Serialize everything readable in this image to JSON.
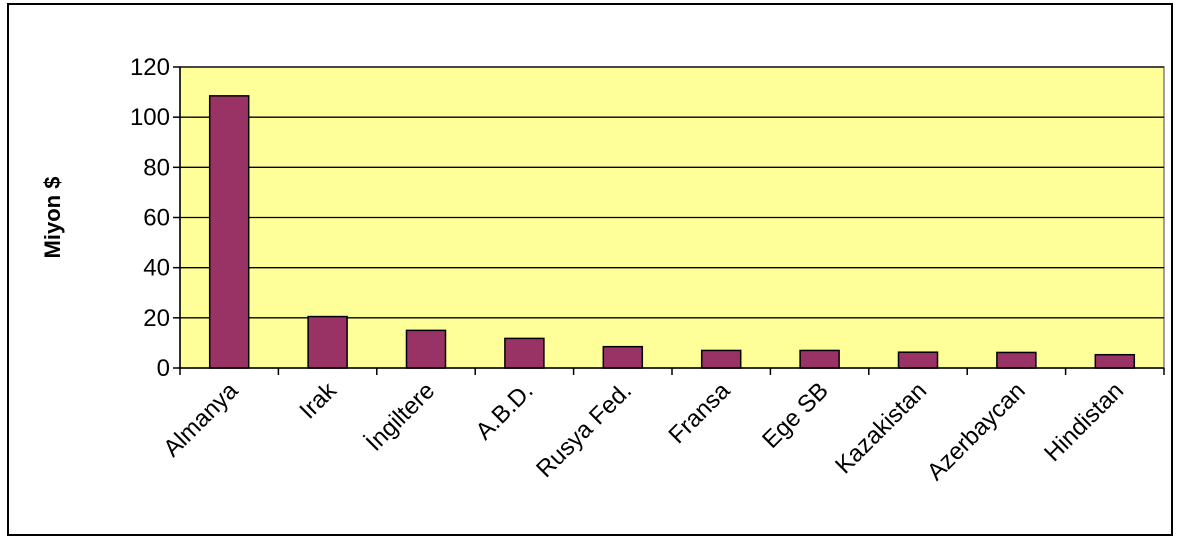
{
  "chart_data": {
    "type": "bar",
    "title": "",
    "xlabel": "",
    "ylabel": "Miyon $",
    "ylim": [
      0,
      120
    ],
    "yticks": [
      0,
      20,
      40,
      60,
      80,
      100,
      120
    ],
    "grid": true,
    "legend": "none",
    "categories": [
      "Almanya",
      "Irak",
      "İngiltere",
      "A.B.D.",
      "Rusya Fed.",
      "Fransa",
      "Ege SB",
      "Kazakistan",
      "Azerbaycan",
      "Hindistan"
    ],
    "series": [
      {
        "values": [
          108.5,
          20.5,
          15,
          11.8,
          8.5,
          7,
          7,
          6.3,
          6.2,
          5.3
        ]
      }
    ],
    "colors": {
      "plot_background": "#FFFF99",
      "bar_fill": "#993366",
      "bar_stroke": "#000000",
      "gridline": "#000000"
    }
  }
}
